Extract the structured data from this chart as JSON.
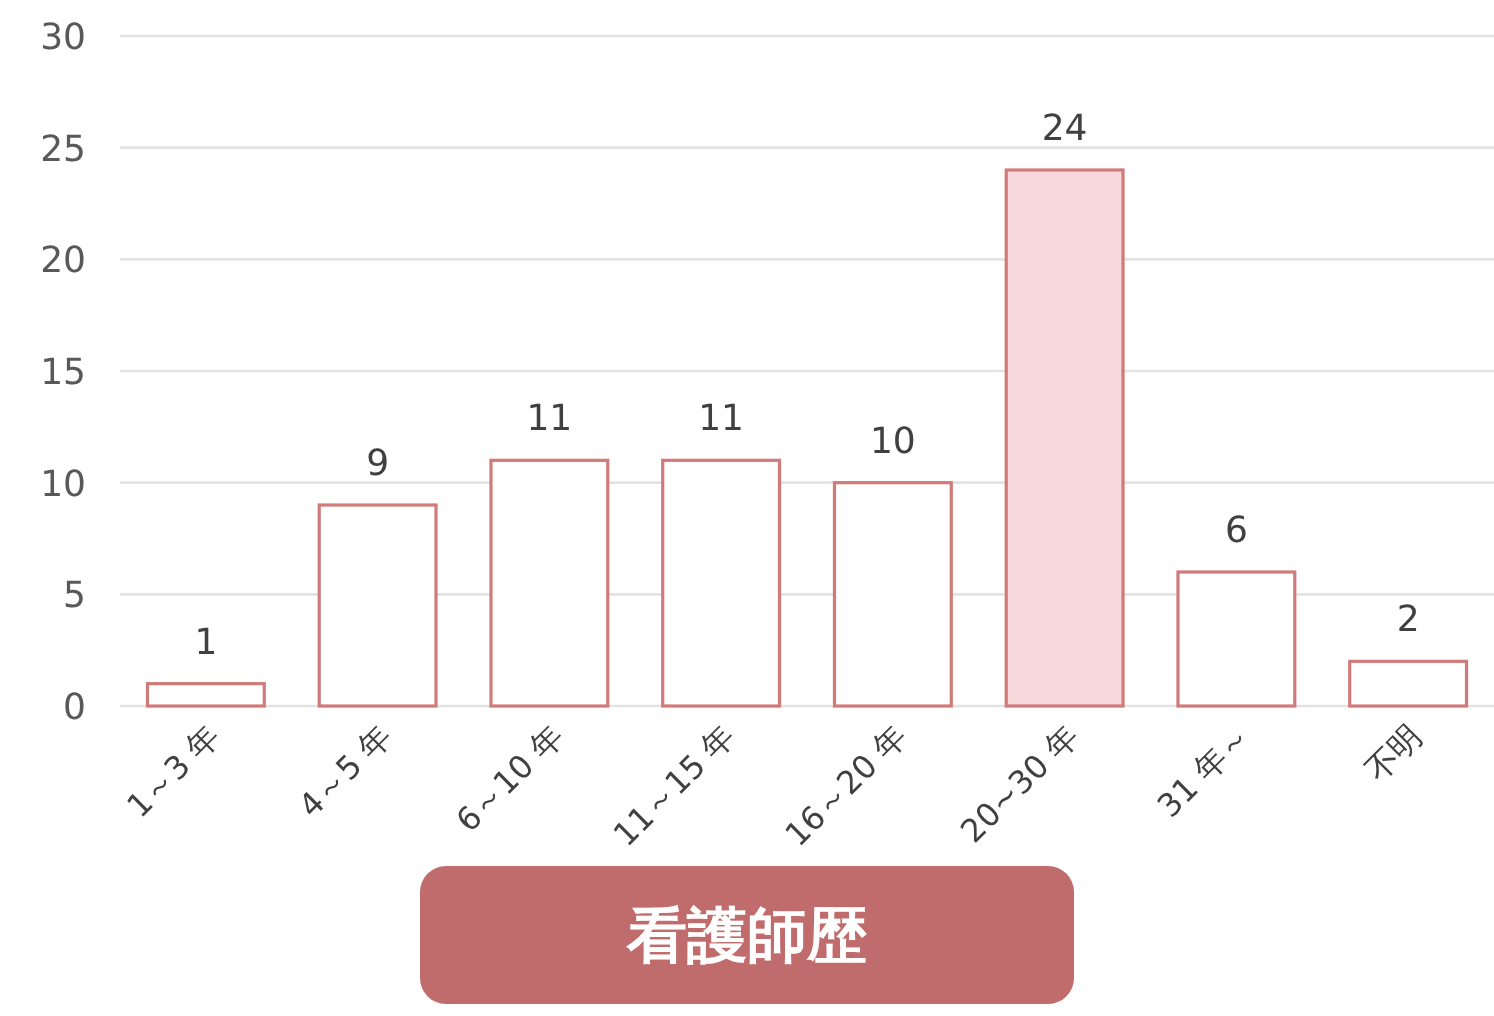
{
  "chart_data": {
    "type": "bar",
    "xlabel": "看護師歴",
    "categories": [
      "1～3 年",
      "4～5 年",
      "6～10 年",
      "11～15 年",
      "16～20 年",
      "20~30 年",
      "31 年～",
      "不明"
    ],
    "values": [
      1,
      9,
      11,
      11,
      10,
      24,
      6,
      2
    ],
    "colors": [
      "#ffffff",
      "#ffffff",
      "#ffffff",
      "#ffffff",
      "#ffffff",
      "#f6d7da",
      "#ffffff",
      "#ffffff"
    ],
    "ylim": [
      0,
      30
    ],
    "yticks": [
      0,
      5,
      10,
      15,
      20,
      25,
      30
    ],
    "grid": "y",
    "data_labels": true
  }
}
